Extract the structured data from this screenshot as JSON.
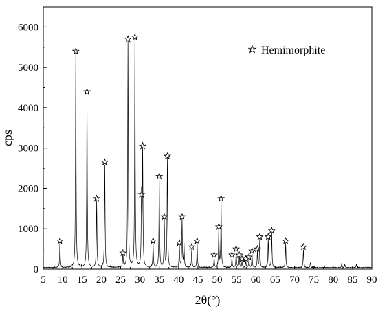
{
  "chart_data": {
    "type": "line",
    "xlabel": "2θ(°)",
    "ylabel": "cps",
    "xlim": [
      5,
      90
    ],
    "ylim": [
      0,
      6500
    ],
    "xticks": [
      "5",
      "10",
      "15",
      "20",
      "25",
      "30",
      "35",
      "40",
      "45",
      "50",
      "55",
      "60",
      "65",
      "70",
      "75",
      "80",
      "85",
      "90"
    ],
    "yticks": [
      "0",
      "1000",
      "2000",
      "3000",
      "4000",
      "5000",
      "6000"
    ],
    "grid": false,
    "legend": {
      "position": "top-right",
      "entries": [
        {
          "label": "Hemimorphite",
          "marker": "star"
        }
      ]
    },
    "series": [
      {
        "marker_label": "Hemimorphite",
        "color": "#000000",
        "peaks": [
          {
            "x": 9.3,
            "y": 650
          },
          {
            "x": 13.4,
            "y": 5300
          },
          {
            "x": 16.3,
            "y": 4300
          },
          {
            "x": 18.8,
            "y": 1650
          },
          {
            "x": 20.9,
            "y": 2550
          },
          {
            "x": 25.6,
            "y": 320
          },
          {
            "x": 26.9,
            "y": 5600
          },
          {
            "x": 28.7,
            "y": 5650
          },
          {
            "x": 30.4,
            "y": 1750
          },
          {
            "x": 30.7,
            "y": 2950
          },
          {
            "x": 33.4,
            "y": 600
          },
          {
            "x": 35.0,
            "y": 2200
          },
          {
            "x": 36.3,
            "y": 1200
          },
          {
            "x": 37.1,
            "y": 2700
          },
          {
            "x": 40.2,
            "y": 550
          },
          {
            "x": 40.9,
            "y": 1200
          },
          {
            "x": 41.4,
            "y": 600
          },
          {
            "x": 43.4,
            "y": 450
          },
          {
            "x": 44.8,
            "y": 600
          },
          {
            "x": 49.2,
            "y": 250
          },
          {
            "x": 50.4,
            "y": 950
          },
          {
            "x": 51.0,
            "y": 1650
          },
          {
            "x": 53.8,
            "y": 250
          },
          {
            "x": 54.9,
            "y": 400
          },
          {
            "x": 55.7,
            "y": 250
          },
          {
            "x": 56.4,
            "y": 150
          },
          {
            "x": 57.4,
            "y": 150
          },
          {
            "x": 58.2,
            "y": 200
          },
          {
            "x": 59.0,
            "y": 350
          },
          {
            "x": 60.4,
            "y": 400
          },
          {
            "x": 61.0,
            "y": 700
          },
          {
            "x": 63.2,
            "y": 700
          },
          {
            "x": 64.1,
            "y": 850
          },
          {
            "x": 67.7,
            "y": 600
          },
          {
            "x": 72.3,
            "y": 450
          },
          {
            "x": 74.1,
            "y": 120
          },
          {
            "x": 82.2,
            "y": 110
          },
          {
            "x": 83.0,
            "y": 80
          },
          {
            "x": 86.0,
            "y": 90
          }
        ],
        "markers": [
          {
            "x": 9.3,
            "y": 700
          },
          {
            "x": 13.4,
            "y": 5400
          },
          {
            "x": 16.3,
            "y": 4400
          },
          {
            "x": 18.8,
            "y": 1750
          },
          {
            "x": 20.9,
            "y": 2650
          },
          {
            "x": 25.6,
            "y": 400
          },
          {
            "x": 26.9,
            "y": 5700
          },
          {
            "x": 28.7,
            "y": 5750
          },
          {
            "x": 30.4,
            "y": 1850
          },
          {
            "x": 30.7,
            "y": 3050
          },
          {
            "x": 33.4,
            "y": 700
          },
          {
            "x": 35.0,
            "y": 2300
          },
          {
            "x": 36.3,
            "y": 1300
          },
          {
            "x": 37.1,
            "y": 2800
          },
          {
            "x": 40.2,
            "y": 650
          },
          {
            "x": 40.9,
            "y": 1300
          },
          {
            "x": 43.4,
            "y": 550
          },
          {
            "x": 44.8,
            "y": 700
          },
          {
            "x": 49.2,
            "y": 350
          },
          {
            "x": 50.4,
            "y": 1050
          },
          {
            "x": 51.0,
            "y": 1750
          },
          {
            "x": 53.8,
            "y": 350
          },
          {
            "x": 54.9,
            "y": 500
          },
          {
            "x": 55.7,
            "y": 350
          },
          {
            "x": 56.4,
            "y": 250
          },
          {
            "x": 57.4,
            "y": 250
          },
          {
            "x": 58.2,
            "y": 300
          },
          {
            "x": 59.0,
            "y": 450
          },
          {
            "x": 60.4,
            "y": 500
          },
          {
            "x": 61.0,
            "y": 800
          },
          {
            "x": 63.2,
            "y": 800
          },
          {
            "x": 64.1,
            "y": 950
          },
          {
            "x": 67.7,
            "y": 700
          },
          {
            "x": 72.3,
            "y": 550
          }
        ]
      }
    ]
  }
}
